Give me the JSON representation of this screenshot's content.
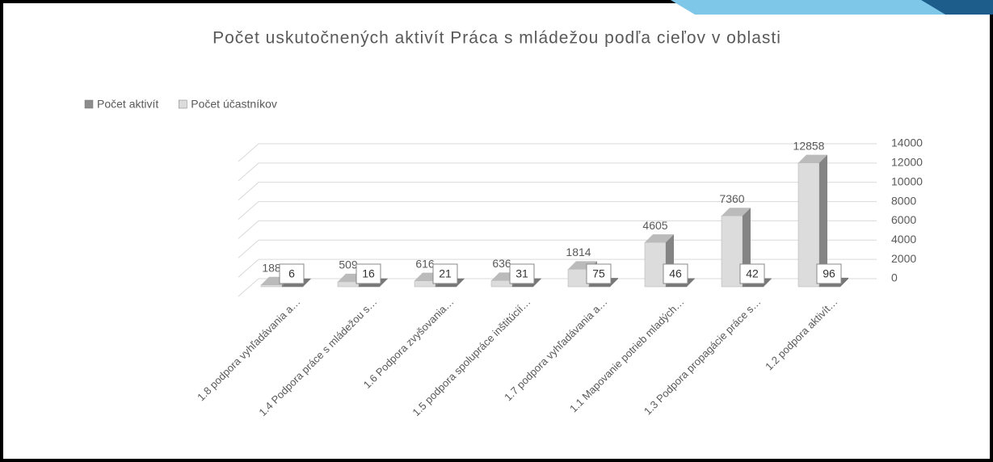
{
  "chart_data": {
    "type": "bar3d",
    "title": "Počet uskutočnených aktivít Práca s mládežou podľa cieľov v oblasti",
    "categories": [
      "1.8 podpora vyhľadávania a…",
      "1.4 Podpora práce s mládežou s…",
      "1.6 Podpora zvyšovania…",
      "1.5 podpora spolupráce inštitúcií…",
      "1.7 podpora vyhľadávania a…",
      "1.1 Mapovanie potrieb mladých…",
      "1.3 Podpora propagácie práce s…",
      "1.2 podpora aktivít…"
    ],
    "series": [
      {
        "name": "Počet aktivít",
        "color": "#8c8c8c",
        "values": [
          6,
          16,
          21,
          31,
          75,
          46,
          42,
          96
        ]
      },
      {
        "name": "Počet účastníkov",
        "color": "#dcdcdc",
        "values": [
          188,
          509,
          616,
          636,
          1814,
          4605,
          7360,
          12858
        ]
      }
    ],
    "ylim": [
      0,
      14000
    ],
    "yticks": [
      0,
      2000,
      4000,
      6000,
      8000,
      10000,
      12000,
      14000
    ],
    "grid": true,
    "legend": "top-left"
  }
}
